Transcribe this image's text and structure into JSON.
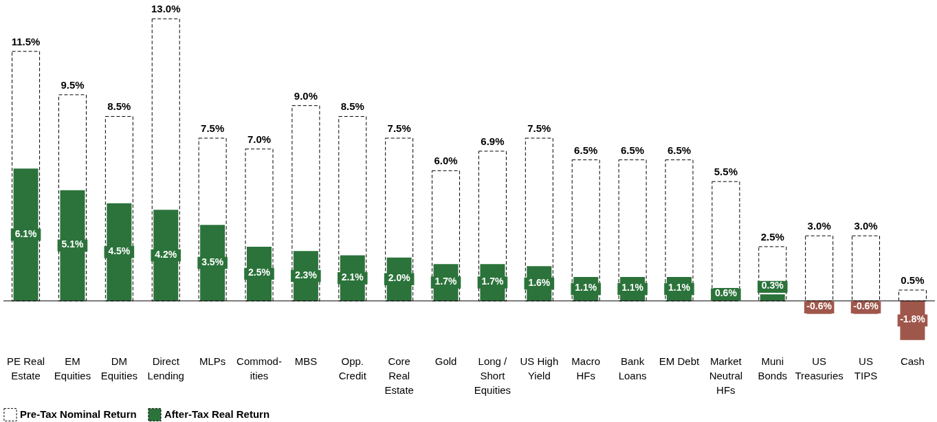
{
  "chart_data": {
    "type": "bar",
    "categories": [
      "PE Real\nEstate",
      "EM\nEquities",
      "DM\nEquities",
      "Direct\nLending",
      "MLPs",
      "Commod-\nities",
      "MBS",
      "Opp.\nCredit",
      "Core\nReal\nEstate",
      "Gold",
      "Long /\nShort\nEquities",
      "US High\nYield",
      "Macro\nHFs",
      "Bank\nLoans",
      "EM Debt",
      "Market\nNeutral\nHFs",
      "Muni\nBonds",
      "US\nTreasuries",
      "US\nTIPS",
      "Cash"
    ],
    "series": [
      {
        "name": "Pre-Tax Nominal Return",
        "color": "#ffffff",
        "line_style": "dashed",
        "values": [
          11.5,
          9.5,
          8.5,
          13.0,
          7.5,
          7.0,
          9.0,
          8.5,
          7.5,
          6.0,
          6.9,
          7.5,
          6.5,
          6.5,
          6.5,
          5.5,
          2.5,
          3.0,
          3.0,
          0.5
        ],
        "value_labels": [
          "11.5%",
          "9.5%",
          "8.5%",
          "13.0%",
          "7.5%",
          "7.0%",
          "9.0%",
          "8.5%",
          "7.5%",
          "6.0%",
          "6.9%",
          "7.5%",
          "6.5%",
          "6.5%",
          "6.5%",
          "5.5%",
          "2.5%",
          "3.0%",
          "3.0%",
          "0.5%"
        ]
      },
      {
        "name": "After-Tax Real Return",
        "color": "#2b733b",
        "colors": [
          "#2b733b",
          "#2b733b",
          "#2b733b",
          "#2b733b",
          "#2b733b",
          "#2b733b",
          "#2b733b",
          "#2b733b",
          "#2b733b",
          "#2b733b",
          "#2b733b",
          "#2b733b",
          "#2b733b",
          "#2b733b",
          "#2b733b",
          "#2b733b",
          "#2b733b",
          "#a0574b",
          "#a0574b",
          "#a0574b"
        ],
        "values": [
          6.1,
          5.1,
          4.5,
          4.2,
          3.5,
          2.5,
          2.3,
          2.1,
          2.0,
          1.7,
          1.7,
          1.6,
          1.1,
          1.1,
          1.1,
          0.6,
          0.3,
          -0.6,
          -0.6,
          -1.8
        ],
        "value_labels": [
          "6.1%",
          "5.1%",
          "4.5%",
          "4.2%",
          "3.5%",
          "2.5%",
          "2.3%",
          "2.1%",
          "2.0%",
          "1.7%",
          "1.7%",
          "1.6%",
          "1.1%",
          "1.1%",
          "1.1%",
          "0.6%",
          "0.3%",
          "-0.6%",
          "-0.6%",
          "-1.8%"
        ]
      }
    ],
    "legend": "bottom"
  }
}
